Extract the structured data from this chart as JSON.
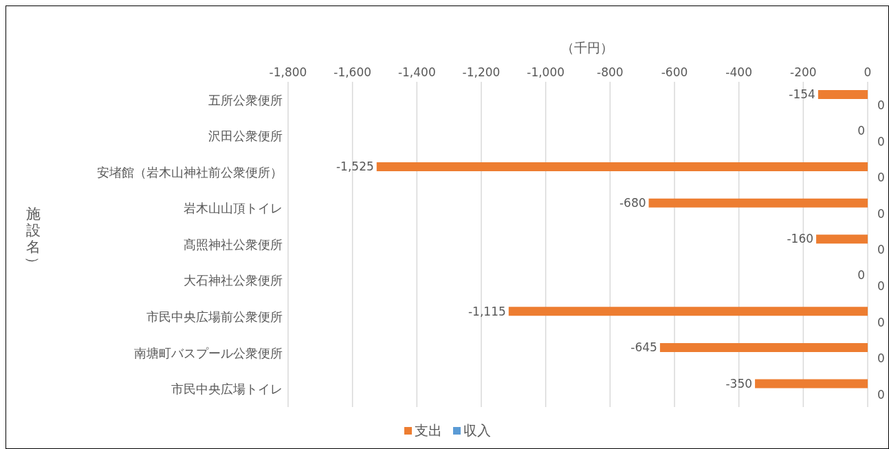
{
  "chart_data": {
    "type": "bar",
    "orientation": "horizontal",
    "xlabel": "（千円）",
    "ylabel": "施設名）",
    "categories": [
      "五所公衆便所",
      "沢田公衆便所",
      "安堵館（岩木山神社前公衆便所）",
      "岩木山山頂トイレ",
      "髙照神社公衆便所",
      "大石神社公衆便所",
      "市民中央広場前公衆便所",
      "南塘町バスプール公衆便所",
      "市民中央広場トイレ"
    ],
    "series": [
      {
        "name": "支出",
        "color": "#ed7d31",
        "values": [
          -154,
          0,
          -1525,
          -680,
          -160,
          0,
          -1115,
          -645,
          -350
        ],
        "value_labels": [
          "-154",
          "0",
          "-1,525",
          "-680",
          "-160",
          "0",
          "-1,115",
          "-645",
          "-350"
        ]
      },
      {
        "name": "収入",
        "color": "#5b9bd5",
        "values": [
          0,
          0,
          0,
          0,
          0,
          0,
          0,
          0,
          0
        ],
        "value_labels": [
          "0",
          "0",
          "0",
          "0",
          "0",
          "0",
          "0",
          "0",
          "0"
        ]
      }
    ],
    "xlim": [
      -1800,
      0
    ],
    "xticks": [
      {
        "value": -1800,
        "label": "-1,800"
      },
      {
        "value": -1600,
        "label": "-1,600"
      },
      {
        "value": -1400,
        "label": "-1,400"
      },
      {
        "value": -1200,
        "label": "-1,200"
      },
      {
        "value": -1000,
        "label": "-1,000"
      },
      -800,
      -600,
      -400,
      -200,
      0
    ],
    "grid": "x",
    "legend": "bottom"
  }
}
